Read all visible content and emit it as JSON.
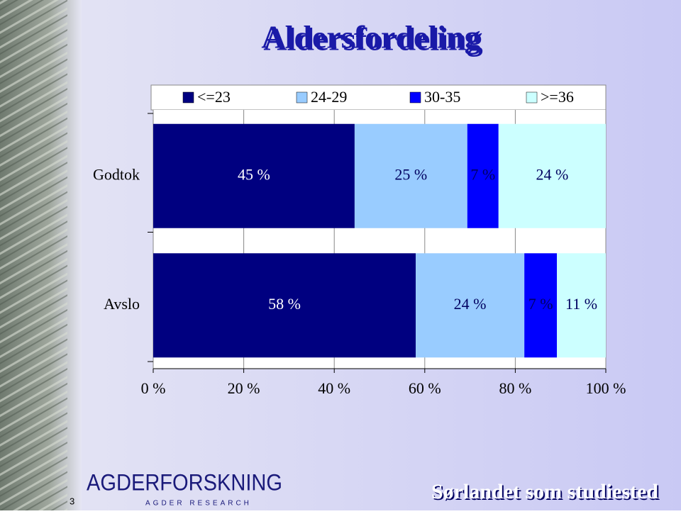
{
  "chart_data": {
    "type": "stacked-barh",
    "title": "Aldersfordeling",
    "categories": [
      "Godtok",
      "Avslo"
    ],
    "series": [
      {
        "name": "<=23",
        "color": "#000080",
        "values": [
          44.5,
          58.0
        ],
        "value_labels": [
          "45 %",
          "58 %"
        ]
      },
      {
        "name": "24-29",
        "color": "#99ccff",
        "values": [
          24.9,
          24.0
        ],
        "value_labels": [
          "25 %",
          "24 %"
        ]
      },
      {
        "name": "30-35",
        "color": "#0000ff",
        "values": [
          6.9,
          7.2
        ],
        "value_labels": [
          "7 %",
          "7 %"
        ]
      },
      {
        "name": ">=36",
        "color": "#ccffff",
        "values": [
          23.7,
          10.8
        ],
        "value_labels": [
          "24 %",
          "11 %"
        ]
      }
    ],
    "xlim": [
      0,
      100
    ],
    "xticks": [
      {
        "value": 0,
        "label": "0 %"
      },
      {
        "value": 20,
        "label": "20 %"
      },
      {
        "value": 40,
        "label": "40 %"
      },
      {
        "value": 60,
        "label": "60 %"
      },
      {
        "value": 80,
        "label": "80 %"
      },
      {
        "value": 100,
        "label": "100 %"
      }
    ],
    "grid": true,
    "legend": "top"
  },
  "slide": {
    "number": "3",
    "logo": "AGDERFORSKNING",
    "logo_sub": "AGDER RESEARCH",
    "footer": "Sørlandet som studiested"
  }
}
